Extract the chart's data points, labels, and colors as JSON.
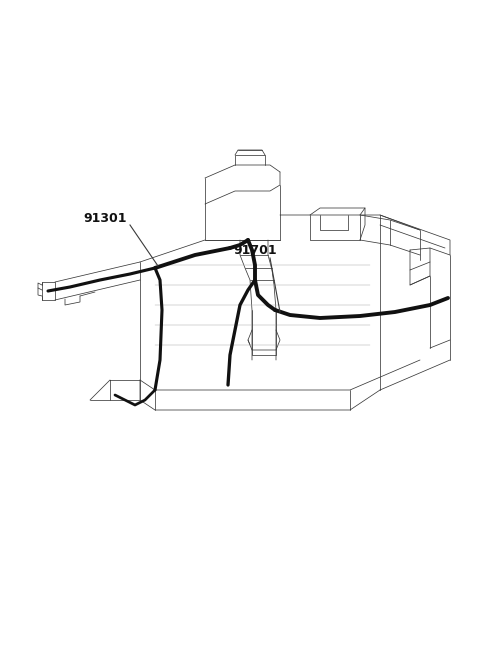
{
  "background_color": "#ffffff",
  "line_color": "#3a3a3a",
  "thick_color": "#111111",
  "label_color": "#111111",
  "label_91301": "91301",
  "label_91701": "91701",
  "figsize": [
    4.8,
    6.55
  ],
  "dpi": 100,
  "thin": 0.55,
  "med": 0.8,
  "thick": 2.8
}
